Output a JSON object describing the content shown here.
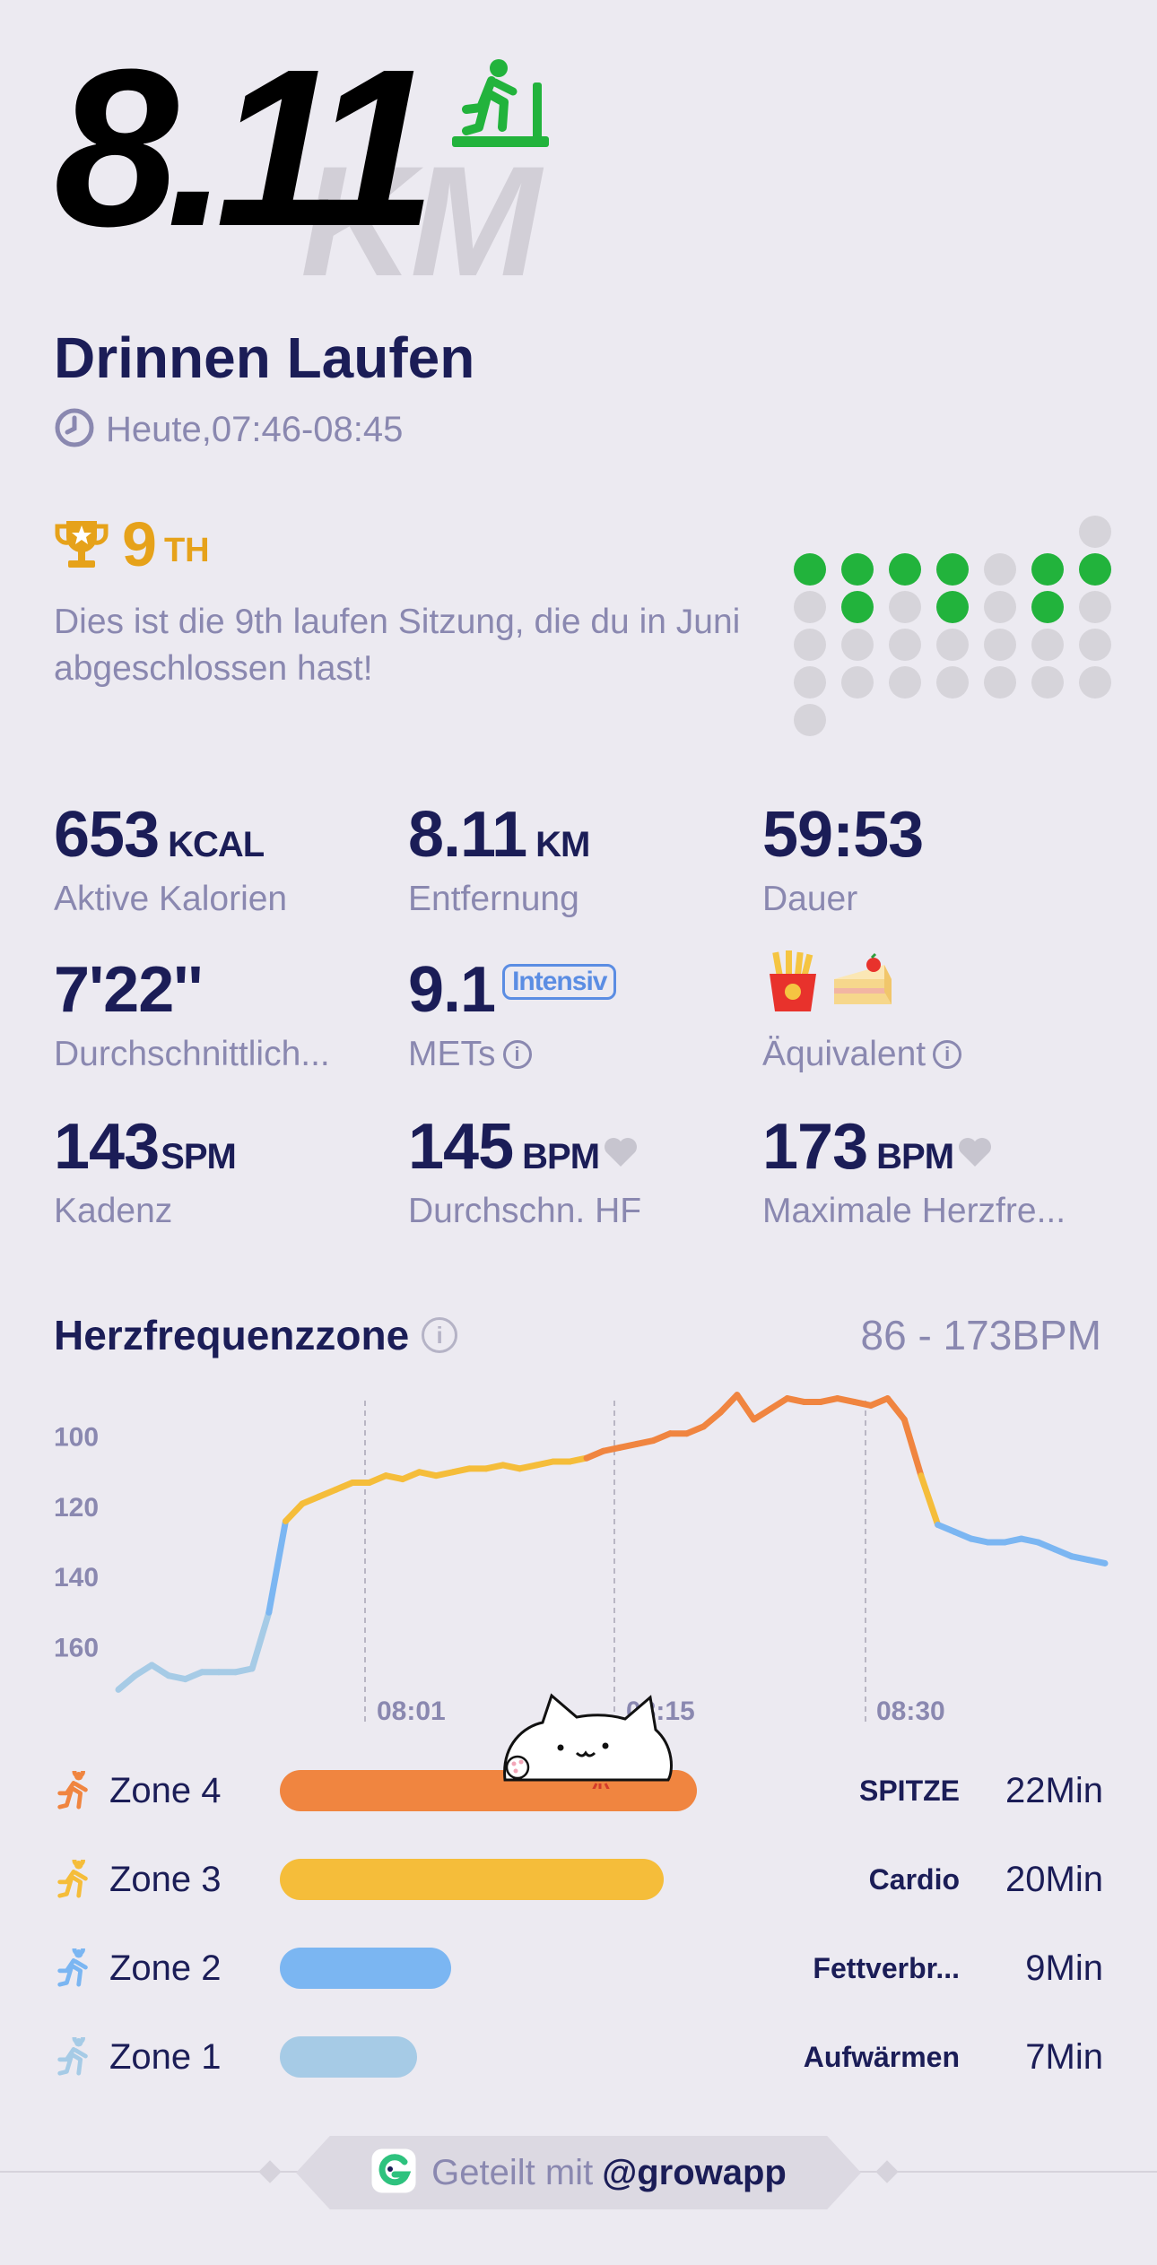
{
  "header": {
    "distance": "8.11",
    "distance_unit": "KM",
    "title": "Drinnen Laufen",
    "time": "Heute,07:46-08:45"
  },
  "rank": {
    "number": "9",
    "suffix": "TH",
    "text": "Dies ist die 9th laufen Sitzung, die du in Juni abgeschlossen hast!"
  },
  "calendar_dots": {
    "green": "#22B33C",
    "gray": "#D6D4DA",
    "rows": [
      [
        0,
        0,
        0,
        0,
        0,
        0,
        1
      ],
      [
        2,
        2,
        2,
        2,
        1,
        2,
        2
      ],
      [
        1,
        2,
        1,
        2,
        1,
        2,
        1
      ],
      [
        1,
        1,
        1,
        1,
        1,
        1,
        1
      ],
      [
        1,
        1,
        1,
        1,
        1,
        1,
        1
      ],
      [
        1,
        0,
        0,
        0,
        0,
        0,
        0
      ]
    ]
  },
  "stats": {
    "calories": {
      "value": "653",
      "unit": "KCAL",
      "label": "Aktive Kalorien"
    },
    "distance": {
      "value": "8.11",
      "unit": "KM",
      "label": "Entfernung"
    },
    "duration": {
      "value": "59:53",
      "label": "Dauer"
    },
    "pace": {
      "value": "7'22''",
      "label": "Durchschnittlich..."
    },
    "mets": {
      "value": "9.1",
      "badge": "Intensiv",
      "label": "METs"
    },
    "equivalent": {
      "label": "Äquivalent"
    },
    "cadence": {
      "value": "143",
      "unit": "SPM",
      "label": "Kadenz"
    },
    "avg_hr": {
      "value": "145",
      "unit": "BPM",
      "label": "Durchschn. HF"
    },
    "max_hr": {
      "value": "173",
      "unit": "BPM",
      "label": "Maximale Herzfre..."
    }
  },
  "hr_zone": {
    "title": "Herzfrequenzzone",
    "range": "86 - 173BPM",
    "y_ticks": [
      "160",
      "140",
      "120",
      "100"
    ],
    "x_ticks": [
      "08:01",
      "08:15",
      "08:30"
    ]
  },
  "chart_data": {
    "type": "line",
    "xlabel": "",
    "ylabel": "",
    "ylim": [
      84,
      176
    ],
    "x_ticks": [
      "08:01",
      "08:15",
      "08:30"
    ],
    "y_ticks": [
      100,
      120,
      140,
      160
    ],
    "series": [
      {
        "x_minutes": [
          0,
          1,
          2,
          3,
          4,
          5,
          6,
          7,
          8,
          9,
          10,
          11,
          12,
          13,
          14,
          15,
          16,
          17,
          18,
          19,
          20,
          21,
          22,
          23,
          24,
          25,
          26,
          27,
          28,
          29,
          30,
          31,
          32,
          33,
          34,
          35,
          36,
          37,
          38,
          39,
          40,
          41,
          42,
          43,
          44,
          45,
          46,
          47,
          48,
          49,
          50,
          51,
          52,
          53,
          54,
          55,
          56,
          57,
          58,
          59
        ],
        "values": [
          88,
          92,
          95,
          92,
          91,
          93,
          93,
          93,
          94,
          110,
          136,
          141,
          143,
          145,
          147,
          147,
          149,
          148,
          150,
          149,
          150,
          151,
          151,
          152,
          151,
          152,
          153,
          153,
          154,
          156,
          157,
          158,
          159,
          161,
          161,
          163,
          167,
          172,
          165,
          168,
          171,
          170,
          170,
          171,
          170,
          169,
          171,
          165,
          149,
          135,
          133,
          131,
          130,
          130,
          131,
          130,
          128,
          126,
          125,
          124
        ]
      }
    ],
    "zone_colors": {
      "zone1": "#A6CBE6",
      "zone2": "#7BB6F2",
      "zone3": "#F5BD3A",
      "zone4": "#F08540"
    }
  },
  "zones": [
    {
      "name": "Zone 4",
      "label": "SPITZE",
      "minutes": "22Min",
      "color": "#F08540",
      "fraction": 1.0
    },
    {
      "name": "Zone 3",
      "label": "Cardio",
      "minutes": "20Min",
      "color": "#F5BD3A",
      "fraction": 0.92
    },
    {
      "name": "Zone 2",
      "label": "Fettverbr...",
      "minutes": "9Min",
      "color": "#7BB6F2",
      "fraction": 0.41
    },
    {
      "name": "Zone 1",
      "label": "Aufwärmen",
      "minutes": "7Min",
      "color": "#A6CBE6",
      "fraction": 0.33
    }
  ],
  "footer": {
    "shared_with": "Geteilt mit",
    "handle": "@growapp"
  }
}
